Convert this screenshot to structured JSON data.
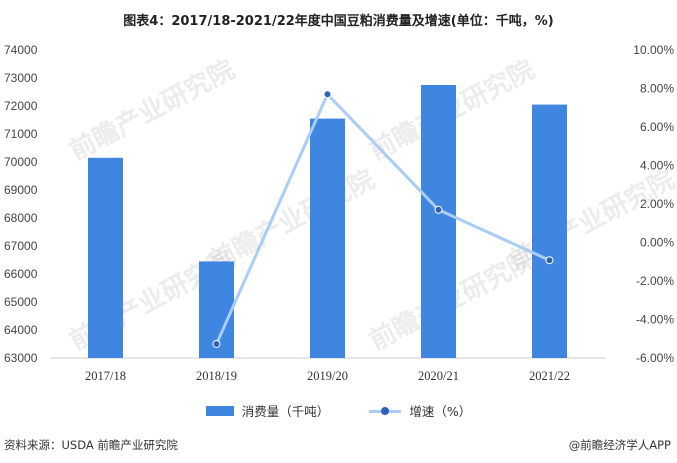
{
  "chart_data": {
    "type": "bar",
    "title": "图表4：2017/18-2021/22年度中国豆粕消费量及增速(单位：千吨，%)",
    "categories": [
      "2017/18",
      "2018/19",
      "2019/20",
      "2020/21",
      "2021/22"
    ],
    "series": [
      {
        "name": "消费量（千吨）",
        "type": "bar",
        "axis": "left",
        "values": [
          70150,
          66450,
          71550,
          72750,
          72050
        ],
        "color": "#3f86e0"
      },
      {
        "name": "增速（%）",
        "type": "line",
        "axis": "right",
        "values": [
          null,
          -5.27,
          7.7,
          1.7,
          -0.92
        ],
        "color": "#a9cdf7",
        "marker_color": "#2c63b8"
      }
    ],
    "y_left": {
      "min": 63000,
      "max": 74000,
      "ticks": [
        63000,
        64000,
        65000,
        66000,
        67000,
        68000,
        69000,
        70000,
        71000,
        72000,
        73000,
        74000
      ]
    },
    "y_right": {
      "min": -6,
      "max": 10,
      "ticks": [
        -6,
        -4,
        -2,
        0,
        2,
        4,
        6,
        8,
        10
      ],
      "format": "percent"
    },
    "grid": false,
    "legend_position": "bottom"
  },
  "footer": {
    "source": "资料来源：USDA 前瞻产业研究院",
    "brand": "@前瞻经济学人APP"
  },
  "watermark": {
    "text": "前瞻产业研究院"
  }
}
